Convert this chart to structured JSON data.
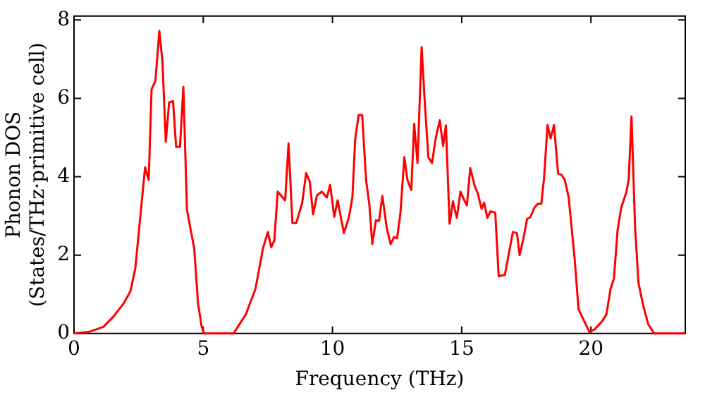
{
  "chart_data": {
    "type": "line",
    "xlabel": "Frequency (THz)",
    "ylabel": "Phonon DOS\n(States/THz·primitive cell)",
    "x": [
      0,
      0.57,
      1.14,
      1.52,
      1.9,
      2.18,
      2.37,
      2.56,
      2.75,
      2.89,
      3.0,
      3.15,
      3.3,
      3.42,
      3.55,
      3.68,
      3.83,
      3.95,
      4.1,
      4.23,
      4.37,
      4.65,
      4.8,
      4.94,
      5.03,
      6.17,
      6.65,
      7.02,
      7.31,
      7.5,
      7.63,
      7.75,
      7.88,
      8.17,
      8.3,
      8.45,
      8.6,
      8.83,
      8.98,
      9.12,
      9.25,
      9.4,
      9.59,
      9.78,
      9.91,
      10.07,
      10.2,
      10.44,
      10.63,
      10.77,
      10.88,
      11.01,
      11.15,
      11.3,
      11.43,
      11.54,
      11.68,
      11.8,
      11.93,
      12.1,
      12.25,
      12.38,
      12.5,
      12.63,
      12.78,
      12.9,
      13.05,
      13.16,
      13.29,
      13.45,
      13.58,
      13.71,
      13.85,
      14.0,
      14.15,
      14.28,
      14.39,
      14.53,
      14.66,
      14.81,
      14.95,
      15.1,
      15.2,
      15.33,
      15.5,
      15.62,
      15.77,
      15.87,
      15.99,
      16.12,
      16.3,
      16.43,
      16.67,
      16.98,
      17.14,
      17.24,
      17.38,
      17.53,
      17.66,
      17.81,
      17.94,
      18.08,
      18.19,
      18.32,
      18.44,
      18.57,
      18.73,
      18.86,
      18.99,
      19.14,
      19.37,
      19.52,
      19.75,
      19.94,
      20.13,
      20.42,
      20.6,
      20.76,
      20.89,
      21.03,
      21.17,
      21.37,
      21.46,
      21.57,
      21.71,
      21.84,
      22.03,
      22.22,
      22.45,
      23.65
    ],
    "series": [
      {
        "color": "#ff0000",
        "values": [
          0,
          0.04,
          0.17,
          0.43,
          0.75,
          1.07,
          1.66,
          2.95,
          4.24,
          3.92,
          6.23,
          6.45,
          7.72,
          6.96,
          4.89,
          5.9,
          5.93,
          4.76,
          4.76,
          6.29,
          3.15,
          2.17,
          0.75,
          0.17,
          0,
          0,
          0.49,
          1.14,
          2.17,
          2.59,
          2.2,
          2.37,
          3.62,
          3.4,
          4.85,
          2.82,
          2.82,
          3.34,
          4.09,
          3.88,
          3.04,
          3.53,
          3.62,
          3.47,
          3.79,
          2.98,
          3.4,
          2.56,
          2.95,
          3.47,
          4.96,
          5.57,
          5.57,
          3.92,
          3.27,
          2.28,
          2.89,
          2.87,
          3.51,
          2.69,
          2.28,
          2.46,
          2.43,
          3.08,
          4.5,
          3.92,
          3.66,
          5.35,
          4.35,
          7.31,
          5.8,
          4.5,
          4.35,
          5.0,
          5.44,
          4.79,
          5.31,
          2.8,
          3.37,
          2.95,
          3.62,
          3.4,
          3.27,
          4.22,
          3.77,
          3.58,
          3.18,
          3.34,
          2.95,
          3.12,
          3.08,
          1.46,
          1.5,
          2.59,
          2.56,
          2.0,
          2.4,
          2.92,
          2.97,
          3.21,
          3.31,
          3.31,
          3.99,
          5.32,
          4.98,
          5.32,
          4.08,
          4.05,
          3.92,
          3.47,
          1.91,
          0.62,
          0.3,
          0.04,
          0.1,
          0.3,
          0.49,
          1.14,
          1.4,
          2.63,
          3.21,
          3.6,
          3.92,
          5.54,
          2.69,
          1.29,
          0.69,
          0.23,
          0,
          0
        ]
      }
    ],
    "xlim": [
      0,
      23.65
    ],
    "xticks": [
      0,
      5,
      10,
      15,
      20
    ],
    "ylim": [
      0,
      8.1
    ],
    "yticks": [
      0,
      2,
      4,
      6,
      8
    ],
    "grid": false,
    "legend": false,
    "marker": "none",
    "line_style": "solid"
  }
}
